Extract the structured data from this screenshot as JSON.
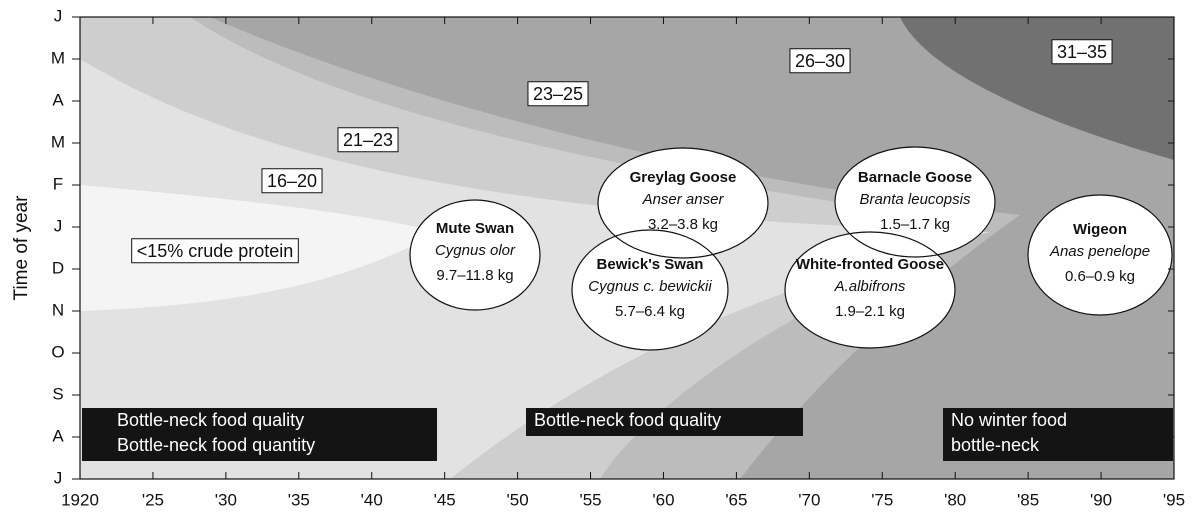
{
  "axis": {
    "y_label": "Time of year",
    "x_ticks": [
      "1920",
      "'25",
      "'30",
      "'35",
      "'40",
      "'45",
      "'50",
      "'55",
      "'60",
      "'65",
      "'70",
      "'75",
      "'80",
      "'85",
      "'90",
      "'95"
    ],
    "y_ticks": [
      "J",
      "M",
      "A",
      "M",
      "F",
      "J",
      "D",
      "N",
      "O",
      "S",
      "A",
      "J"
    ]
  },
  "zones": [
    "<15% crude protein",
    "16–20",
    "21–23",
    "23–25",
    "26–30",
    "31–35"
  ],
  "species": [
    {
      "name": "Mute Swan",
      "latin": "Cygnus olor",
      "mass": "9.7–11.8 kg"
    },
    {
      "name": "Greylag Goose",
      "latin": "Anser anser",
      "mass": "3.2–3.8 kg"
    },
    {
      "name": "Bewick's Swan",
      "latin": "Cygnus c. bewickii",
      "mass": "5.7–6.4 kg"
    },
    {
      "name": "Barnacle Goose",
      "latin": "Branta leucopsis",
      "mass": "1.5–1.7 kg"
    },
    {
      "name": "White-fronted Goose",
      "latin": "A.albifrons",
      "mass": "1.9–2.1 kg"
    },
    {
      "name": "Wigeon",
      "latin": "Anas penelope",
      "mass": "0.6–0.9 kg"
    }
  ],
  "bottlenecks": [
    [
      "Bottle-neck food quality",
      "Bottle-neck food quantity"
    ],
    [
      "Bottle-neck food quality"
    ],
    [
      "No winter food",
      "bottle-neck"
    ]
  ]
}
